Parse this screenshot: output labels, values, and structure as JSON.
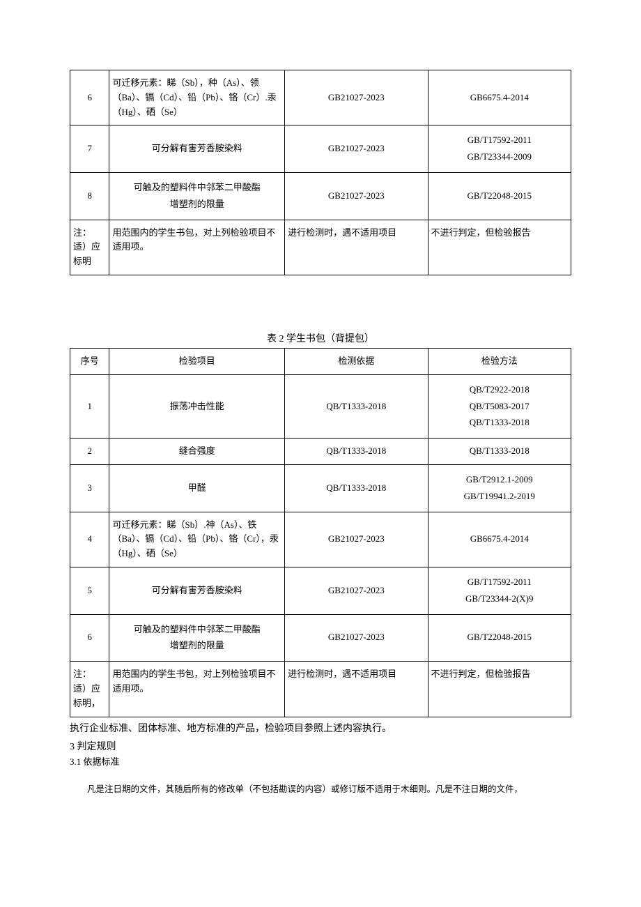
{
  "table1": {
    "rows": [
      {
        "num": "6",
        "item": "可迁移元素：睇（Sb），种（As）、领（Ba）、镉（Cd）、铅（Pb）、铬（Cr）.汞（Hg）、硒（Se）",
        "basis": "GB21027-2023",
        "method": "GB6675.4-2014"
      },
      {
        "num": "7",
        "item": "可分解有害芳香胺染料",
        "basis": "GB21027-2023",
        "method_lines": [
          "GB/T17592-2011",
          "GB/T23344-2009"
        ]
      },
      {
        "num": "8",
        "item_lines": [
          "可触及的塑料件中邻苯二甲酸酯",
          "增塑剂的限量"
        ],
        "basis": "GB21027-2023",
        "method": "GB/T22048-2015"
      }
    ],
    "footnote": {
      "c1": "注：适）应标明",
      "c2": "用范围内的学生书包，对上列检验项目不适用项。",
      "c3": "进行检测时，遇不适用项目",
      "c4": "不进行判定，但检验报告"
    }
  },
  "table2": {
    "title": "表 2 学生书包（背提包）",
    "header": {
      "num": "序号",
      "item": "检验项目",
      "basis": "检测依据",
      "method": "检验方法"
    },
    "rows": [
      {
        "num": "1",
        "item": "振荡冲击性能",
        "basis": "QB/T1333-2018",
        "method_lines": [
          "QB/T2922-2018",
          "QB/T5083-2017",
          "QB/T1333-2018"
        ]
      },
      {
        "num": "2",
        "item": "缝合强度",
        "basis": "QB/T1333-2018",
        "method": "QB/T1333-2018"
      },
      {
        "num": "3",
        "item": "甲醛",
        "basis": "QB/T1333-2018",
        "method_lines": [
          "GB/T2912.1-2009",
          "GB/T19941.2-2019"
        ]
      },
      {
        "num": "4",
        "item": "可迁移元素：睇（Sb）.神（As）、铁（Ba）、镉（Cd）、铅（Pb）、铬（Cr），汞（Hg）、硒（Se）",
        "basis": "GB21027-2023",
        "method": "GB6675.4-2014"
      },
      {
        "num": "5",
        "item": "可分解有害芳香胺染料",
        "basis": "GB21027-2023",
        "method_lines": [
          "GB/T17592-2011",
          "GB/T23344-2(X)9"
        ]
      },
      {
        "num": "6",
        "item_lines": [
          "可触及的塑料件中邻苯二甲酸酯",
          "增塑剂的限量"
        ],
        "basis": "GB21027-2023",
        "method": "GB/T22048-2015"
      }
    ],
    "footnote": {
      "c1": "注：适）应标明，",
      "c2": "用范围内的学生书包，对上列检验项目不适用项。",
      "c3": "进行检测时，遇不适用项目",
      "c4": "不进行判定，但检验报告"
    }
  },
  "footer": {
    "line1": "执行企业标准、团体标准、地方标准的产品，检验项目参照上述内容执行。",
    "section": "3 判定规则",
    "sub": "3.1  依据标准",
    "note": "凡是注日期的文件，其随后所有的修改单（不包括勘误的内容）或修订版不适用于木细则。凡是不注日期的文件，"
  }
}
